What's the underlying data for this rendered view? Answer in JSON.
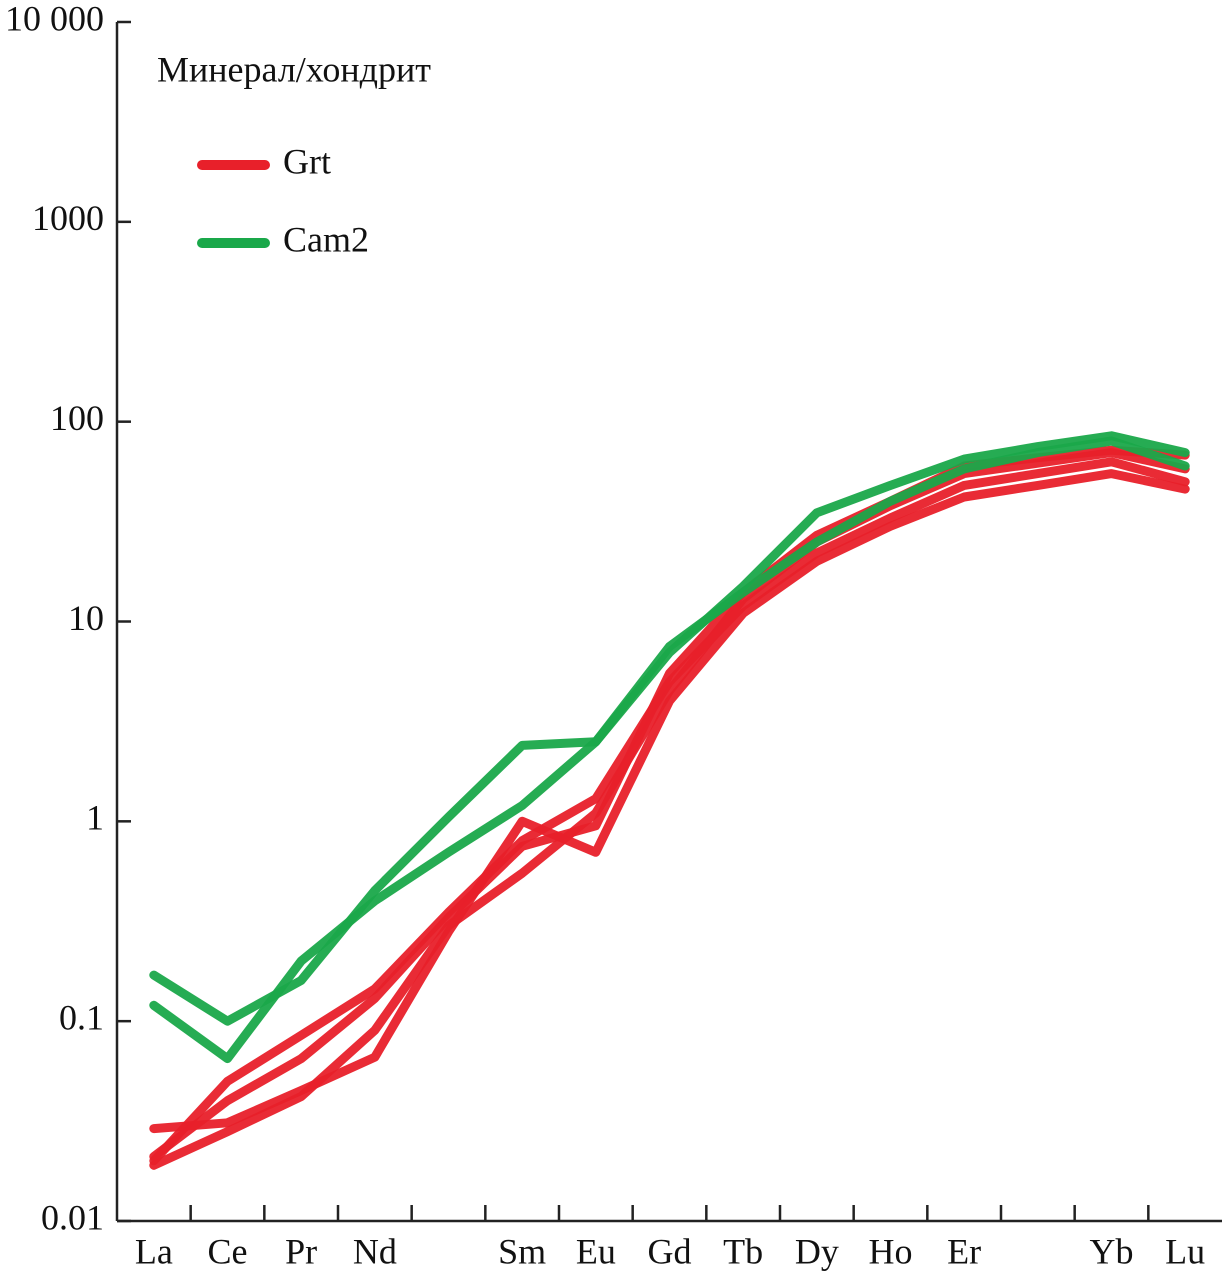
{
  "chart_data": {
    "type": "line",
    "log_y": true,
    "legend_title": "Минерал/хондрит",
    "categories": [
      "La",
      "Ce",
      "Pr",
      "Nd",
      null,
      "Sm",
      "Eu",
      "Gd",
      "Tb",
      "Dy",
      "Ho",
      "Er",
      null,
      "Yb",
      "Lu"
    ],
    "ylim": [
      0.01,
      10000
    ],
    "yticks": [
      0.01,
      0.1,
      1,
      10,
      100,
      1000,
      {
        "value": 10000,
        "label": "10 000"
      }
    ],
    "legend": "upper left",
    "series": [
      {
        "name": "Grt",
        "color": "#e8202a",
        "values": [
          [
            0.029,
            0.031,
            0.045,
            0.066,
            0.28,
            1.0,
            0.7,
            4,
            11,
            20,
            30,
            42,
            48,
            55,
            46
          ],
          [
            0.02,
            0.05,
            0.085,
            0.145,
            0.35,
            0.8,
            1.3,
            5,
            12,
            22,
            33,
            48,
            55,
            63,
            50
          ],
          [
            0.019,
            0.028,
            0.042,
            0.09,
            0.3,
            0.55,
            1.1,
            4.5,
            13,
            25,
            38,
            55,
            62,
            70,
            58
          ],
          [
            0.021,
            0.04,
            0.065,
            0.13,
            0.33,
            0.75,
            0.95,
            5.5,
            14,
            27,
            40,
            60,
            66,
            72,
            68
          ]
        ]
      },
      {
        "name": "Cam2",
        "color": "#1aa84a",
        "values": [
          [
            0.17,
            0.1,
            0.16,
            0.45,
            1.05,
            2.4,
            2.5,
            7,
            15,
            35,
            48,
            65,
            75,
            85,
            70
          ],
          [
            0.12,
            0.065,
            0.2,
            0.4,
            0.7,
            1.2,
            2.5,
            7.5,
            14,
            25,
            40,
            58,
            70,
            80,
            60
          ]
        ]
      }
    ]
  }
}
